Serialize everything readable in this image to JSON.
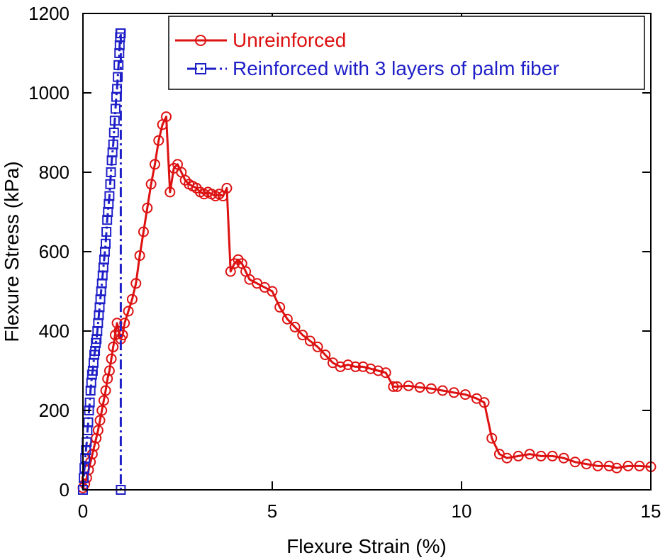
{
  "chart_data": {
    "type": "line",
    "title": "",
    "xlabel": "Flexure Strain (%)",
    "ylabel": "Flexure Stress (kPa)",
    "xlim": [
      0,
      15
    ],
    "ylim": [
      0,
      1200
    ],
    "xticks": [
      0,
      5,
      10,
      15
    ],
    "yticks": [
      0,
      200,
      400,
      600,
      800,
      1000,
      1200
    ],
    "grid": false,
    "legend_position": "top-right",
    "series": [
      {
        "name": "Unreinforced",
        "color": "#dd1111",
        "marker": "circle",
        "line_style": "solid",
        "x": [
          0.0,
          0.05,
          0.1,
          0.15,
          0.2,
          0.25,
          0.3,
          0.35,
          0.4,
          0.45,
          0.5,
          0.55,
          0.6,
          0.65,
          0.7,
          0.75,
          0.8,
          0.85,
          0.9,
          0.95,
          1.0,
          1.05,
          1.1,
          1.2,
          1.3,
          1.4,
          1.5,
          1.6,
          1.7,
          1.8,
          1.9,
          2.0,
          2.1,
          2.2,
          2.3,
          2.4,
          2.5,
          2.6,
          2.7,
          2.8,
          2.9,
          3.0,
          3.1,
          3.2,
          3.3,
          3.4,
          3.5,
          3.6,
          3.7,
          3.8,
          3.9,
          4.0,
          4.1,
          4.2,
          4.3,
          4.4,
          4.6,
          4.8,
          5.0,
          5.2,
          5.4,
          5.6,
          5.8,
          6.0,
          6.2,
          6.4,
          6.6,
          6.8,
          7.0,
          7.2,
          7.4,
          7.6,
          7.8,
          8.0,
          8.2,
          8.3,
          8.6,
          8.9,
          9.2,
          9.5,
          9.8,
          10.1,
          10.4,
          10.6,
          10.8,
          11.0,
          11.2,
          11.5,
          11.8,
          12.1,
          12.4,
          12.7,
          13.0,
          13.3,
          13.6,
          13.9,
          14.1,
          14.4,
          14.7,
          15.0
        ],
        "y": [
          5,
          15,
          30,
          50,
          70,
          90,
          110,
          130,
          150,
          175,
          200,
          225,
          250,
          280,
          300,
          330,
          360,
          390,
          420,
          400,
          380,
          390,
          420,
          450,
          480,
          520,
          590,
          650,
          710,
          770,
          820,
          880,
          920,
          940,
          750,
          810,
          820,
          800,
          780,
          770,
          765,
          760,
          750,
          745,
          750,
          745,
          740,
          745,
          740,
          760,
          550,
          570,
          580,
          570,
          550,
          530,
          520,
          510,
          500,
          460,
          430,
          410,
          390,
          375,
          360,
          340,
          320,
          310,
          315,
          310,
          310,
          305,
          300,
          295,
          260,
          260,
          262,
          258,
          255,
          250,
          245,
          240,
          230,
          220,
          130,
          90,
          80,
          85,
          90,
          85,
          85,
          80,
          70,
          65,
          60,
          60,
          55,
          60,
          60,
          58
        ]
      },
      {
        "name": "Reinforced with 3 layers of palm fiber",
        "color": "#1f1fc8",
        "marker": "square",
        "line_style": "dashdot",
        "x": [
          0.0,
          0.02,
          0.04,
          0.06,
          0.08,
          0.1,
          0.12,
          0.14,
          0.16,
          0.18,
          0.2,
          0.22,
          0.24,
          0.26,
          0.28,
          0.3,
          0.32,
          0.34,
          0.36,
          0.38,
          0.4,
          0.42,
          0.44,
          0.46,
          0.48,
          0.5,
          0.52,
          0.54,
          0.56,
          0.58,
          0.6,
          0.62,
          0.64,
          0.66,
          0.68,
          0.7,
          0.72,
          0.74,
          0.76,
          0.78,
          0.8,
          0.82,
          0.84,
          0.86,
          0.88,
          0.9,
          0.92,
          0.94,
          0.96,
          0.97,
          0.98,
          0.99,
          1.0,
          1.0
        ],
        "y": [
          0,
          30,
          55,
          80,
          100,
          120,
          150,
          170,
          200,
          220,
          250,
          270,
          290,
          300,
          320,
          340,
          350,
          370,
          380,
          400,
          420,
          440,
          460,
          480,
          500,
          520,
          540,
          560,
          580,
          600,
          620,
          650,
          680,
          700,
          720,
          740,
          770,
          800,
          830,
          850,
          870,
          900,
          930,
          960,
          990,
          1010,
          1040,
          1070,
          1100,
          1120,
          1140,
          1150,
          1150,
          0
        ]
      }
    ]
  }
}
